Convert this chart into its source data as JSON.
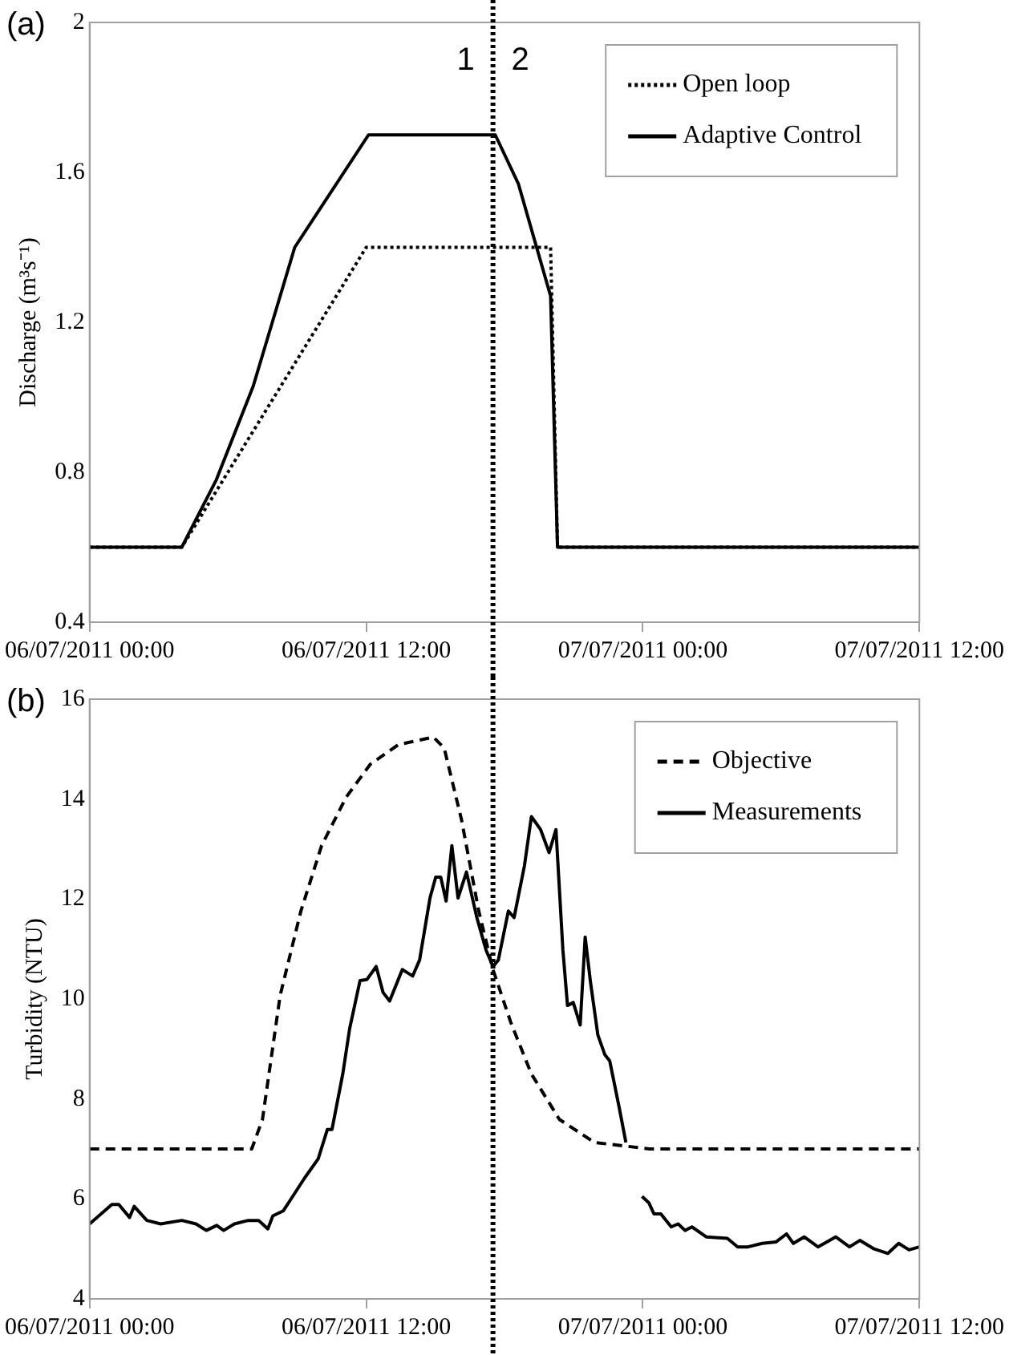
{
  "chart_data": [
    {
      "type": "line",
      "title": "(a)",
      "ylabel": "Discharge (m³s⁻¹)",
      "xlim": [
        "2011-07-06T00:00",
        "2011-07-07T12:00"
      ],
      "xticks": [
        {
          "value": "2011-07-06T00:00",
          "label": "06/07/2011 00:00"
        },
        {
          "value": "2011-07-06T12:00",
          "label": "06/07/2011 12:00"
        },
        {
          "value": "2011-07-07T00:00",
          "label": "07/07/2011 00:00"
        },
        {
          "value": "2011-07-07T12:00",
          "label": "07/07/2011 12:00"
        }
      ],
      "ylim": [
        0.4,
        2
      ],
      "yticks": [
        0.4,
        0.8,
        1.2,
        1.6,
        2
      ],
      "grid": false,
      "legend": "top right",
      "marker": "none",
      "ref_lines": [
        {
          "axis": "x",
          "value": "2011-07-06T17:30",
          "color": "#000000",
          "line_style": "dotted"
        }
      ],
      "annotations": [
        "1",
        "2"
      ],
      "series": [
        {
          "name": "Open loop",
          "color": "#000000",
          "line_style": "dotted",
          "x": [
            "2011-07-06T00:00",
            "2011-07-06T04:00",
            "2011-07-06T12:00",
            "2011-07-06T20:00",
            "2011-07-06T20:18",
            "2011-07-07T12:00"
          ],
          "values": [
            0.6,
            0.6,
            1.4,
            1.4,
            0.6,
            0.6
          ]
        },
        {
          "name": "Adaptive Control",
          "color": "#000000",
          "line_style": "solid",
          "x": [
            "2011-07-06T00:00",
            "2011-07-06T04:00",
            "2011-07-06T05:30",
            "2011-07-06T07:06",
            "2011-07-06T08:54",
            "2011-07-06T12:06",
            "2011-07-06T17:36",
            "2011-07-06T18:36",
            "2011-07-06T20:00",
            "2011-07-06T20:18",
            "2011-07-07T12:00"
          ],
          "values": [
            0.6,
            0.6,
            0.78,
            1.03,
            1.4,
            1.7,
            1.7,
            1.57,
            1.27,
            0.6,
            0.6
          ]
        }
      ]
    },
    {
      "type": "line",
      "title": "(b)",
      "ylabel": "Turbidity (NTU)",
      "xlim": [
        "2011-07-06T00:00",
        "2011-07-07T12:00"
      ],
      "xticks": [
        {
          "value": "2011-07-06T00:00",
          "label": "06/07/2011 00:00"
        },
        {
          "value": "2011-07-06T12:00",
          "label": "06/07/2011 12:00"
        },
        {
          "value": "2011-07-07T00:00",
          "label": "07/07/2011 00:00"
        },
        {
          "value": "2011-07-07T12:00",
          "label": "07/07/2011 12:00"
        }
      ],
      "ylim": [
        4,
        16
      ],
      "yticks": [
        4,
        6,
        8,
        10,
        12,
        14,
        16
      ],
      "grid": false,
      "legend": "top right",
      "marker": "none",
      "ref_lines": [
        {
          "axis": "x",
          "value": "2011-07-06T17:30",
          "color": "#000000",
          "line_style": "dotted"
        }
      ],
      "series": [
        {
          "name": "Objective",
          "color": "#000000",
          "line_style": "dashed",
          "x": [
            "2011-07-06T00:00",
            "2011-07-06T07:02",
            "2011-07-06T07:30",
            "2011-07-06T08:16",
            "2011-07-06T09:10",
            "2011-07-06T10:04",
            "2011-07-06T11:08",
            "2011-07-06T12:11",
            "2011-07-06T13:24",
            "2011-07-06T14:55",
            "2011-07-06T15:23",
            "2011-07-06T16:08",
            "2011-07-06T16:53",
            "2011-07-06T17:30",
            "2011-07-06T18:16",
            "2011-07-06T19:10",
            "2011-07-06T20:23",
            "2011-07-06T21:54",
            "2011-07-07T00:18",
            "2011-07-07T12:00"
          ],
          "values": [
            7,
            7,
            7.59,
            10.07,
            11.76,
            13.07,
            14.04,
            14.7,
            15.09,
            15.24,
            15.02,
            13.59,
            11.76,
            10.59,
            9.54,
            8.5,
            7.59,
            7.13,
            7,
            7
          ]
        },
        {
          "name": "Measurements",
          "color": "#000000",
          "line_style": "solid",
          "x": [
            "2011-07-06T00:00",
            "2011-07-06T00:58",
            "2011-07-06T01:16",
            "2011-07-06T01:44",
            "2011-07-06T01:56",
            "2011-07-06T02:29",
            "2011-07-06T03:05",
            "2011-07-06T04:00",
            "2011-07-06T04:37",
            "2011-07-06T05:04",
            "2011-07-06T05:31",
            "2011-07-06T05:49",
            "2011-07-06T06:17",
            "2011-07-06T06:53",
            "2011-07-06T07:20",
            "2011-07-06T07:44",
            "2011-07-06T07:57",
            "2011-07-06T08:24",
            "2011-07-06T08:52",
            "2011-07-06T09:19",
            "2011-07-06T09:55",
            "2011-07-06T10:19",
            "2011-07-06T10:31",
            "2011-07-06T10:59",
            "2011-07-06T11:17",
            "2011-07-06T11:44",
            "2011-07-06T12:02",
            "2011-07-06T12:26",
            "2011-07-06T12:44",
            "2011-07-06T13:01",
            "2011-07-06T13:34",
            "2011-07-06T14:01",
            "2011-07-06T14:19",
            "2011-07-06T14:46",
            "2011-07-06T15:01",
            "2011-07-06T15:14",
            "2011-07-06T15:28",
            "2011-07-06T15:43",
            "2011-07-06T15:59",
            "2011-07-06T16:21",
            "2011-07-06T16:48",
            "2011-07-06T17:12",
            "2011-07-06T17:30",
            "2011-07-06T17:44",
            "2011-07-06T18:10",
            "2011-07-06T18:25",
            "2011-07-06T18:52",
            "2011-07-06T19:10",
            "2011-07-06T19:34",
            "2011-07-06T19:56",
            "2011-07-06T20:14",
            "2011-07-06T20:32",
            "2011-07-06T20:44",
            "2011-07-06T20:59",
            "2011-07-06T21:17",
            "2011-07-06T21:30",
            "2011-07-06T21:44",
            "2011-07-06T22:03",
            "2011-07-06T22:21",
            "2011-07-06T22:34",
            "2011-07-06T22:58",
            "2011-07-06T23:16",
            "2011-07-06T23:36",
            "2011-07-06T23:58",
            "2011-07-07T00:16",
            "2011-07-07T00:29",
            "2011-07-07T00:47",
            "2011-07-07T01:14",
            "2011-07-07T01:32",
            "2011-07-07T01:50",
            "2011-07-07T02:08",
            "2011-07-07T02:45",
            "2011-07-07T03:40",
            "2011-07-07T04:07",
            "2011-07-07T04:34",
            "2011-07-07T05:11",
            "2011-07-07T05:47",
            "2011-07-07T06:14",
            "2011-07-07T06:32",
            "2011-07-07T07:00",
            "2011-07-07T07:36",
            "2011-07-07T08:22",
            "2011-07-07T08:58",
            "2011-07-07T09:25",
            "2011-07-07T10:02",
            "2011-07-07T10:38",
            "2011-07-07T11:06",
            "2011-07-07T11:33",
            "2011-07-07T12:00"
          ],
          "values": [
            5.5,
            5.89,
            5.89,
            5.63,
            5.85,
            5.57,
            5.5,
            5.57,
            5.5,
            5.37,
            5.47,
            5.37,
            5.5,
            5.57,
            5.57,
            5.4,
            5.66,
            5.76,
            6.09,
            6.41,
            6.8,
            7.39,
            7.39,
            8.5,
            9.41,
            10.37,
            10.39,
            10.65,
            10.13,
            9.96,
            10.59,
            10.46,
            10.78,
            12.02,
            12.44,
            12.44,
            11.96,
            13.07,
            12.02,
            12.54,
            11.63,
            10.98,
            10.65,
            10.78,
            11.76,
            11.63,
            12.67,
            13.65,
            13.39,
            12.93,
            13.39,
            10.98,
            9.87,
            9.93,
            9.48,
            11.24,
            10.33,
            9.28,
            8.89,
            8.76,
            7.85,
            7.13,
            null,
            6.05,
            5.92,
            5.7,
            5.7,
            5.44,
            5.5,
            5.37,
            5.44,
            5.24,
            5.21,
            5.04,
            5.04,
            5.11,
            5.14,
            5.3,
            5.11,
            5.24,
            5.04,
            5.24,
            5.04,
            5.17,
            5,
            4.91,
            5.11,
            4.98,
            5.04
          ]
        }
      ]
    }
  ]
}
